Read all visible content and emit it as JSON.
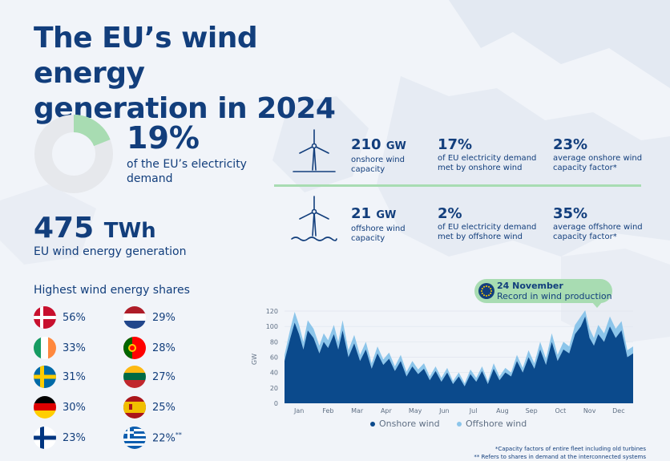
{
  "title": "The EU’s wind energy\ngeneration in 2024",
  "demand_share": {
    "value": "19%",
    "fraction": 0.19,
    "label": "of the EU’s electricity demand"
  },
  "generation": {
    "value": "475",
    "unit": "TWh",
    "label": "EU wind energy generation"
  },
  "shares_title": "Highest wind energy shares",
  "countries": [
    {
      "flag": "denmark-flag",
      "value": "56%"
    },
    {
      "flag": "ireland-flag",
      "value": "33%"
    },
    {
      "flag": "sweden-flag",
      "value": "31%"
    },
    {
      "flag": "germany-flag",
      "value": "30%"
    },
    {
      "flag": "finland-flag",
      "value": "23%"
    },
    {
      "flag": "netherlands-flag",
      "value": "29%"
    },
    {
      "flag": "portugal-flag",
      "value": "28%"
    },
    {
      "flag": "lithuania-flag",
      "value": "27%"
    },
    {
      "flag": "spain-flag",
      "value": "25%"
    },
    {
      "flag": "greece-flag",
      "value": "22%",
      "note": "**"
    }
  ],
  "onshore": {
    "capacity": {
      "value": "210",
      "unit": "GW",
      "label": "onshore wind capacity"
    },
    "demand": {
      "value": "17%",
      "label": "of EU electricity demand met by onshore wind"
    },
    "factor": {
      "value": "23%",
      "label": "average onshore wind capacity factor*"
    }
  },
  "offshore": {
    "capacity": {
      "value": "21",
      "unit": "GW",
      "label": "offshore wind capacity"
    },
    "demand": {
      "value": "2%",
      "label": "of EU electricity demand met by offshore wind"
    },
    "factor": {
      "value": "35%",
      "label": "average offshore wind capacity factor*"
    }
  },
  "callout": {
    "date": "24 November",
    "text": "Record in wind production"
  },
  "footnotes": [
    "*Capacity factors of entire fleet including old turbines",
    "** Refers to shares in demand at the interconnected systems"
  ],
  "colors": {
    "navy": "#123e7c",
    "onshore": "#0b4a8c",
    "offshore": "#8cc5ea",
    "green": "#a8dcb2",
    "donut_bg": "#e6e8ec"
  },
  "chart_data": {
    "type": "area",
    "ylabel": "GW",
    "ylim": [
      0,
      120
    ],
    "yticks": [
      0,
      20,
      40,
      60,
      80,
      100,
      120
    ],
    "months": [
      "Jan",
      "Feb",
      "Mar",
      "Apr",
      "May",
      "Jun",
      "Jul",
      "Aug",
      "Sep",
      "Oct",
      "Nov",
      "Dec"
    ],
    "x_unit": "month (0 = 1 Jan, 12 = 31 Dec)",
    "series": [
      {
        "name": "Onshore wind",
        "x": [
          0,
          0.2,
          0.35,
          0.5,
          0.65,
          0.8,
          1.0,
          1.2,
          1.35,
          1.5,
          1.7,
          1.85,
          2.0,
          2.2,
          2.4,
          2.6,
          2.8,
          3.0,
          3.2,
          3.4,
          3.6,
          3.8,
          4.0,
          4.2,
          4.4,
          4.6,
          4.8,
          5.0,
          5.2,
          5.4,
          5.6,
          5.8,
          6.0,
          6.2,
          6.4,
          6.6,
          6.8,
          7.0,
          7.2,
          7.4,
          7.6,
          7.8,
          8.0,
          8.2,
          8.4,
          8.6,
          8.8,
          9.0,
          9.2,
          9.4,
          9.6,
          9.8,
          10.0,
          10.2,
          10.35,
          10.5,
          10.65,
          10.8,
          11.0,
          11.2,
          11.4,
          11.6,
          11.8,
          12.0
        ],
        "y": [
          55,
          85,
          105,
          90,
          70,
          95,
          85,
          65,
          80,
          72,
          90,
          70,
          95,
          60,
          78,
          55,
          70,
          45,
          65,
          50,
          58,
          42,
          55,
          35,
          48,
          38,
          45,
          30,
          42,
          28,
          40,
          25,
          35,
          22,
          38,
          28,
          42,
          25,
          45,
          30,
          40,
          35,
          55,
          40,
          60,
          45,
          70,
          50,
          80,
          55,
          70,
          65,
          90,
          100,
          113,
          85,
          75,
          90,
          80,
          100,
          85,
          95,
          60,
          65
        ]
      },
      {
        "name": "Offshore wind",
        "x": [
          0,
          0.2,
          0.35,
          0.5,
          0.65,
          0.8,
          1.0,
          1.2,
          1.35,
          1.5,
          1.7,
          1.85,
          2.0,
          2.2,
          2.4,
          2.6,
          2.8,
          3.0,
          3.2,
          3.4,
          3.6,
          3.8,
          4.0,
          4.2,
          4.4,
          4.6,
          4.8,
          5.0,
          5.2,
          5.4,
          5.6,
          5.8,
          6.0,
          6.2,
          6.4,
          6.6,
          6.8,
          7.0,
          7.2,
          7.4,
          7.6,
          7.8,
          8.0,
          8.2,
          8.4,
          8.6,
          8.8,
          9.0,
          9.2,
          9.4,
          9.6,
          9.8,
          10.0,
          10.2,
          10.35,
          10.5,
          10.65,
          10.8,
          11.0,
          11.2,
          11.4,
          11.6,
          11.8,
          12.0
        ],
        "y": [
          8,
          12,
          14,
          12,
          10,
          13,
          12,
          10,
          11,
          10,
          12,
          10,
          13,
          9,
          11,
          8,
          10,
          7,
          9,
          7,
          8,
          6,
          8,
          6,
          7,
          6,
          7,
          5,
          6,
          5,
          6,
          4,
          5,
          4,
          6,
          5,
          6,
          4,
          7,
          5,
          6,
          5,
          8,
          6,
          9,
          7,
          10,
          8,
          11,
          8,
          10,
          9,
          12,
          13,
          8,
          12,
          10,
          12,
          11,
          13,
          12,
          12,
          9,
          9
        ]
      }
    ]
  }
}
